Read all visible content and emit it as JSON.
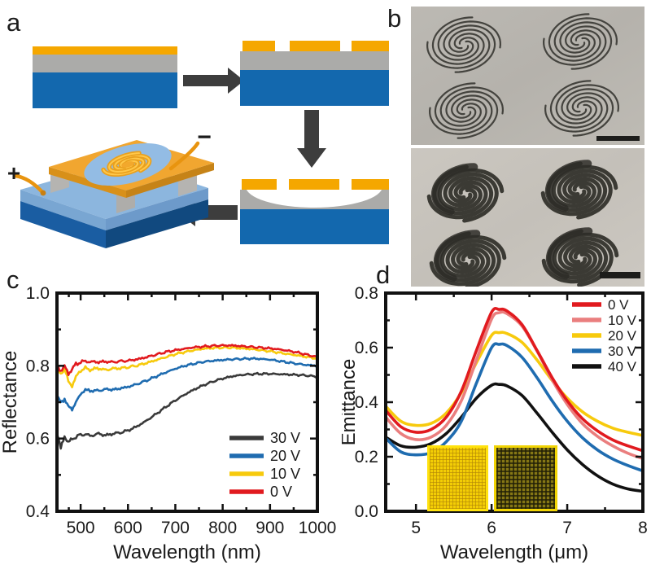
{
  "figure": {
    "panels": {
      "a": {
        "label": "a",
        "plus_label": "+",
        "minus_label": "−"
      },
      "b": {
        "label": "b"
      },
      "c": {
        "label": "c"
      },
      "d": {
        "label": "d"
      }
    }
  },
  "colors": {
    "gold_layer": "#f5a700",
    "gray_layer": "#ababa9",
    "blue_layer": "#1368ae",
    "arrow": "#3d3d3d",
    "series_red": "#e11a1f",
    "series_salmon": "#ea7e7e",
    "series_yellow": "#f7ca0d",
    "series_blue": "#1f6cb0",
    "series_dark_gray": "#3a3a3a",
    "series_black": "#111111"
  },
  "chart_data": [
    {
      "id": "reflectance",
      "type": "line",
      "title": "",
      "xlabel": "Wavelength (nm)",
      "ylabel": "Reflectance",
      "xlim": [
        450,
        1000
      ],
      "ylim": [
        0.4,
        1.0
      ],
      "xticks": [
        {
          "v": 500,
          "label": "500"
        },
        {
          "v": 600,
          "label": "600"
        },
        {
          "v": 700,
          "label": "700"
        },
        {
          "v": 800,
          "label": "800"
        },
        {
          "v": 900,
          "label": "900"
        },
        {
          "v": 1000,
          "label": "1000"
        }
      ],
      "yticks": [
        {
          "v": 0.4,
          "label": "0.4"
        },
        {
          "v": 0.6,
          "label": "0.6"
        },
        {
          "v": 0.8,
          "label": "0.8"
        },
        {
          "v": 1.0,
          "label": "1.0"
        }
      ],
      "xminor": [
        475,
        550,
        650,
        750,
        850,
        950
      ],
      "yminor": [
        0.5,
        0.7,
        0.9
      ],
      "grid": false,
      "legend_position": "bottom-right",
      "legend_order": [
        "30 V",
        "20 V",
        "10 V",
        "0 V"
      ],
      "noisy": true,
      "series": [
        {
          "name": "30 V",
          "color": "#3a3a3a",
          "x": [
            450,
            458,
            466,
            474,
            482,
            490,
            500,
            510,
            520,
            535,
            550,
            565,
            580,
            600,
            620,
            640,
            660,
            680,
            700,
            720,
            740,
            760,
            780,
            800,
            820,
            840,
            860,
            880,
            900,
            920,
            940,
            960,
            980,
            1000
          ],
          "y": [
            0.618,
            0.57,
            0.605,
            0.588,
            0.598,
            0.605,
            0.61,
            0.612,
            0.608,
            0.612,
            0.61,
            0.612,
            0.615,
            0.622,
            0.634,
            0.65,
            0.668,
            0.687,
            0.705,
            0.721,
            0.735,
            0.747,
            0.757,
            0.765,
            0.771,
            0.775,
            0.777,
            0.778,
            0.778,
            0.777,
            0.776,
            0.775,
            0.773,
            0.77
          ]
        },
        {
          "name": "20 V",
          "color": "#1f6cb0",
          "x": [
            450,
            458,
            466,
            474,
            482,
            490,
            500,
            510,
            520,
            535,
            550,
            565,
            580,
            600,
            620,
            640,
            660,
            680,
            700,
            720,
            740,
            760,
            780,
            800,
            820,
            840,
            860,
            880,
            900,
            920,
            940,
            960,
            980,
            1000
          ],
          "y": [
            0.715,
            0.7,
            0.712,
            0.688,
            0.682,
            0.7,
            0.722,
            0.735,
            0.73,
            0.733,
            0.734,
            0.735,
            0.737,
            0.742,
            0.75,
            0.76,
            0.771,
            0.782,
            0.792,
            0.8,
            0.806,
            0.811,
            0.814,
            0.816,
            0.818,
            0.819,
            0.82,
            0.819,
            0.817,
            0.813,
            0.809,
            0.805,
            0.802,
            0.8
          ]
        },
        {
          "name": "10 V",
          "color": "#f7ca0d",
          "x": [
            450,
            458,
            466,
            474,
            482,
            490,
            500,
            510,
            520,
            535,
            550,
            565,
            580,
            600,
            620,
            640,
            660,
            680,
            700,
            720,
            740,
            760,
            780,
            800,
            820,
            840,
            860,
            880,
            900,
            920,
            940,
            960,
            980,
            1000
          ],
          "y": [
            0.792,
            0.778,
            0.79,
            0.755,
            0.745,
            0.768,
            0.788,
            0.793,
            0.79,
            0.792,
            0.79,
            0.791,
            0.793,
            0.796,
            0.801,
            0.808,
            0.816,
            0.824,
            0.832,
            0.838,
            0.843,
            0.847,
            0.849,
            0.85,
            0.85,
            0.848,
            0.846,
            0.843,
            0.84,
            0.836,
            0.832,
            0.828,
            0.824,
            0.82
          ]
        },
        {
          "name": "0 V",
          "color": "#e11a1f",
          "x": [
            450,
            458,
            466,
            474,
            482,
            490,
            500,
            510,
            520,
            535,
            550,
            565,
            580,
            600,
            620,
            640,
            660,
            680,
            700,
            720,
            740,
            760,
            780,
            800,
            820,
            840,
            860,
            880,
            900,
            920,
            940,
            960,
            980,
            1000
          ],
          "y": [
            0.8,
            0.788,
            0.8,
            0.78,
            0.792,
            0.805,
            0.81,
            0.813,
            0.81,
            0.812,
            0.81,
            0.811,
            0.812,
            0.814,
            0.818,
            0.824,
            0.831,
            0.838,
            0.843,
            0.847,
            0.851,
            0.853,
            0.855,
            0.856,
            0.856,
            0.854,
            0.852,
            0.85,
            0.848,
            0.845,
            0.841,
            0.836,
            0.83,
            0.824
          ]
        }
      ]
    },
    {
      "id": "emittance",
      "type": "line",
      "title": "",
      "xlabel": "Wavelength (μm)",
      "ylabel": "Emittance",
      "xlim": [
        4.6,
        8
      ],
      "ylim": [
        0.0,
        0.8
      ],
      "xticks": [
        {
          "v": 5,
          "label": "5"
        },
        {
          "v": 6,
          "label": "6"
        },
        {
          "v": 7,
          "label": "7"
        },
        {
          "v": 8,
          "label": "8"
        }
      ],
      "yticks": [
        {
          "v": 0.0,
          "label": "0.0"
        },
        {
          "v": 0.2,
          "label": "0.2"
        },
        {
          "v": 0.4,
          "label": "0.4"
        },
        {
          "v": 0.6,
          "label": "0.6"
        },
        {
          "v": 0.8,
          "label": "0.8"
        }
      ],
      "xminor": [
        5.5,
        6.5,
        7.5
      ],
      "yminor": [
        0.1,
        0.3,
        0.5,
        0.7
      ],
      "grid": false,
      "legend_position": "top-right",
      "legend_order": [
        "0 V",
        "10 V",
        "20 V",
        "30 V",
        "40 V"
      ],
      "noisy": false,
      "series": [
        {
          "name": "40 V",
          "color": "#111111",
          "x": [
            4.6,
            4.8,
            5.0,
            5.2,
            5.4,
            5.6,
            5.8,
            6.0,
            6.1,
            6.2,
            6.4,
            6.6,
            6.8,
            7.0,
            7.2,
            7.4,
            7.6,
            7.8,
            8.0
          ],
          "y": [
            0.272,
            0.24,
            0.235,
            0.248,
            0.285,
            0.345,
            0.415,
            0.462,
            0.465,
            0.46,
            0.425,
            0.36,
            0.29,
            0.225,
            0.172,
            0.13,
            0.1,
            0.082,
            0.073
          ]
        },
        {
          "name": "30 V",
          "color": "#1f6cb0",
          "x": [
            4.6,
            4.8,
            5.0,
            5.2,
            5.4,
            5.6,
            5.8,
            6.0,
            6.1,
            6.2,
            6.4,
            6.6,
            6.8,
            7.0,
            7.2,
            7.4,
            7.6,
            7.8,
            8.0
          ],
          "y": [
            0.268,
            0.218,
            0.207,
            0.215,
            0.255,
            0.33,
            0.47,
            0.6,
            0.612,
            0.608,
            0.565,
            0.49,
            0.405,
            0.33,
            0.27,
            0.225,
            0.192,
            0.168,
            0.148
          ]
        },
        {
          "name": "20 V",
          "color": "#f7ca0d",
          "x": [
            4.6,
            4.8,
            5.0,
            5.2,
            5.4,
            5.6,
            5.8,
            6.0,
            6.1,
            6.2,
            6.4,
            6.6,
            6.8,
            7.0,
            7.2,
            7.4,
            7.6,
            7.8,
            8.0
          ],
          "y": [
            0.385,
            0.33,
            0.315,
            0.322,
            0.36,
            0.435,
            0.545,
            0.645,
            0.655,
            0.652,
            0.62,
            0.555,
            0.48,
            0.415,
            0.365,
            0.33,
            0.305,
            0.29,
            0.278
          ]
        },
        {
          "name": "10 V",
          "color": "#ea7e7e",
          "x": [
            4.6,
            4.8,
            5.0,
            5.2,
            5.4,
            5.6,
            5.8,
            6.0,
            6.1,
            6.2,
            6.4,
            6.6,
            6.8,
            7.0,
            7.2,
            7.4,
            7.6,
            7.8,
            8.0
          ],
          "y": [
            0.345,
            0.285,
            0.263,
            0.272,
            0.315,
            0.405,
            0.555,
            0.705,
            0.728,
            0.725,
            0.68,
            0.588,
            0.482,
            0.392,
            0.322,
            0.275,
            0.24,
            0.213,
            0.193
          ]
        },
        {
          "name": "0 V",
          "color": "#e11a1f",
          "x": [
            4.6,
            4.8,
            5.0,
            5.2,
            5.4,
            5.6,
            5.8,
            6.0,
            6.1,
            6.2,
            6.4,
            6.6,
            6.8,
            7.0,
            7.2,
            7.4,
            7.6,
            7.8,
            8.0
          ],
          "y": [
            0.37,
            0.31,
            0.29,
            0.3,
            0.345,
            0.44,
            0.59,
            0.73,
            0.74,
            0.735,
            0.685,
            0.59,
            0.49,
            0.405,
            0.34,
            0.295,
            0.262,
            0.24,
            0.222
          ]
        }
      ]
    }
  ]
}
